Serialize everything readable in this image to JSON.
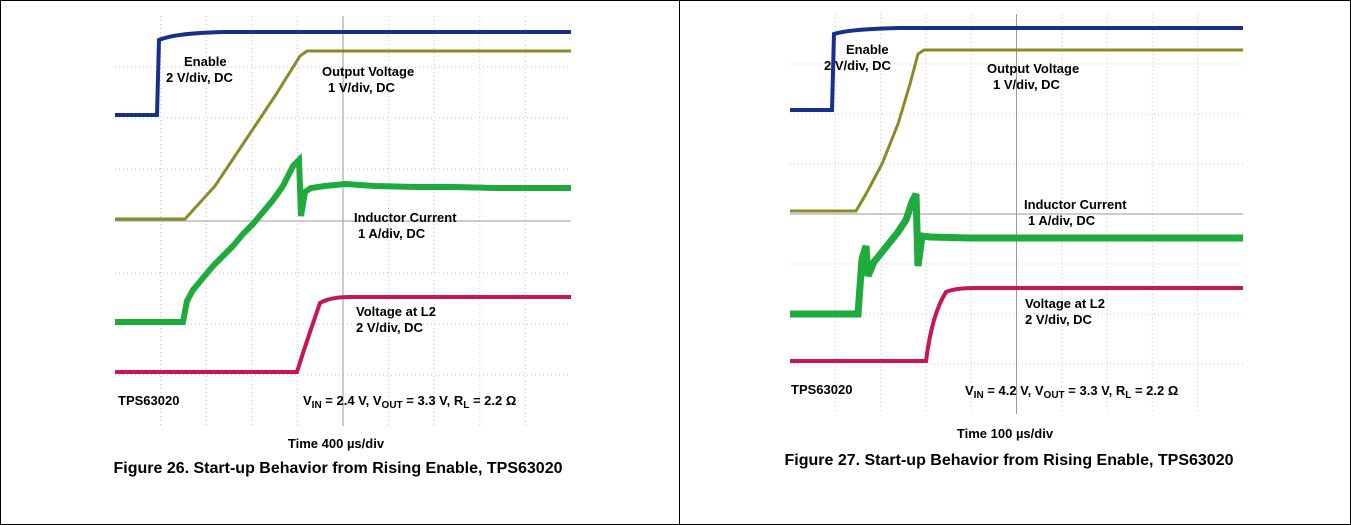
{
  "figures": [
    {
      "id": "fig26",
      "labels": {
        "enable_title": "Enable",
        "enable_scale": "2 V/div, DC",
        "output_title": "Output Voltage",
        "output_scale": "1 V/div, DC",
        "inductor_title": "Inductor Current",
        "inductor_scale": "1 A/div, DC",
        "l2_title": "Voltage at L2",
        "l2_scale": "2 V/div, DC",
        "device": "TPS63020",
        "cond_vin_pre": "V",
        "cond_vin_sub": "IN",
        "cond_vin_val": " = 2.4 V, V",
        "cond_vout_sub": "OUT",
        "cond_vout_val": " = 3.3 V, R",
        "cond_rl_sub": "L",
        "cond_rl_val": " = 2.2 Ω"
      },
      "timebase": "Time 400 µs/div",
      "caption": "Figure 26. Start-up Behavior from Rising Enable, TPS63020"
    },
    {
      "id": "fig27",
      "labels": {
        "enable_title": "Enable",
        "enable_scale": "2 V/div, DC",
        "output_title": "Output Voltage",
        "output_scale": "1 V/div, DC",
        "inductor_title": "Inductor Current",
        "inductor_scale": "1 A/div, DC",
        "l2_title": "Voltage at L2",
        "l2_scale": "2 V/div, DC",
        "device": "TPS63020",
        "cond_vin_pre": "V",
        "cond_vin_sub": "IN",
        "cond_vin_val": " = 4.2 V, V",
        "cond_vout_sub": "OUT",
        "cond_vout_val": " = 3.3 V, R",
        "cond_rl_sub": "L",
        "cond_rl_val": " = 2.2 Ω"
      },
      "timebase": "Time 100 µs/div",
      "caption": "Figure 27. Start-up Behavior from Rising Enable, TPS63020"
    }
  ],
  "colors": {
    "enable": "#1a2f8c",
    "output": "#8a8a26",
    "inductor": "#1faa3c",
    "l2": "#c8145a",
    "grid": "#b0b0b0"
  }
}
